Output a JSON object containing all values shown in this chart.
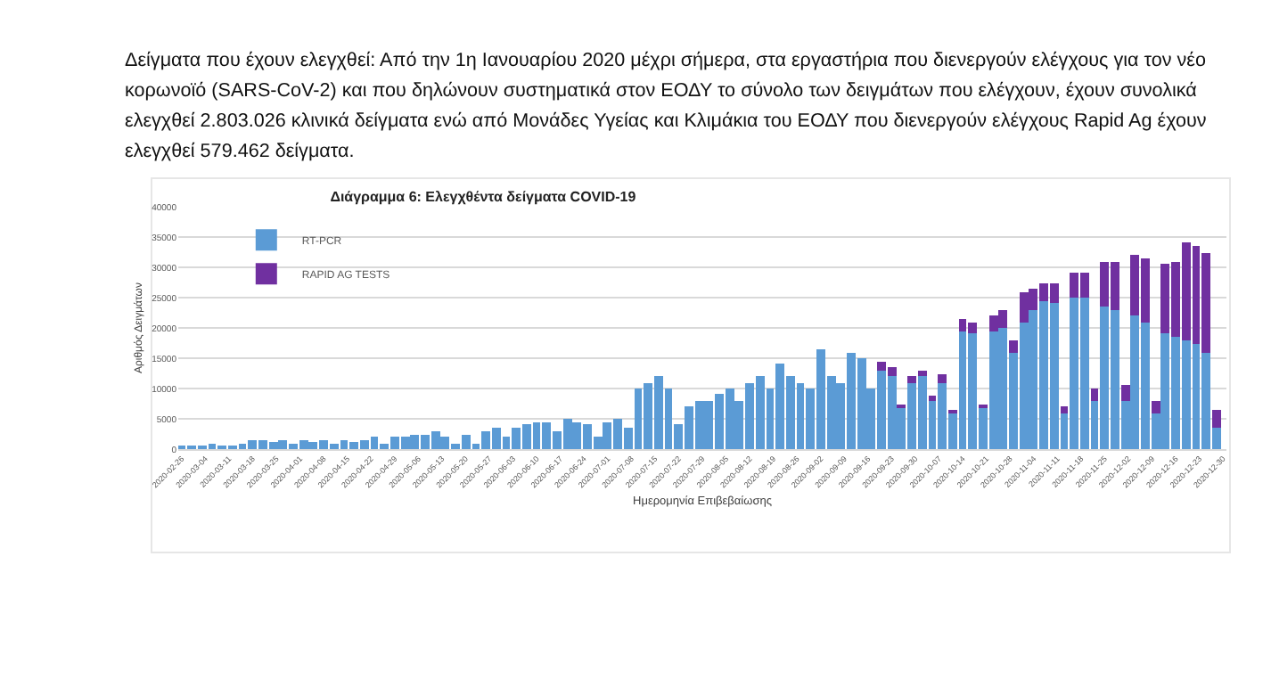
{
  "chart_data": {
    "type": "bar",
    "stacked": true,
    "title": "Διάγραμμα 6: Ελεγχθέντα δείγματα COVID-19",
    "xlabel": "Ημερομηνία Επιβεβαίωσης",
    "ylabel": "Αριθμός Δειγμάτων",
    "annotations": [
      "Δείγματα που έχουν ελεγχθεί: Από την 1η Ιανουαρίου 2020 μέχρι σήμερα, στα εργαστήρια που διενεργούν ελέγχους για τον νέο",
      "κορωνοϊό (SARS-CoV-2) και που δηλώνουν συστηματικά στον ΕΟΔΥ το σύνολο των δειγμάτων που ελέγχουν, έχουν συνολικά",
      "ελεγχθεί 2.803.026 κλινικά δείγματα ενώ από Μονάδες Υγείας και Κλιμάκια του ΕΟΔΥ που διενεργούν ελέγχους Rapid Ag έχουν",
      "ελεγχθεί 579.462 δείγματα."
    ],
    "x": [
      "2020-02-26",
      "2020-02-29",
      "2020-03-03",
      "2020-03-06",
      "2020-03-09",
      "2020-03-12",
      "2020-03-15",
      "2020-03-18",
      "2020-03-21",
      "2020-03-24",
      "2020-03-27",
      "2020-03-30",
      "2020-04-02",
      "2020-04-05",
      "2020-04-08",
      "2020-04-11",
      "2020-04-14",
      "2020-04-17",
      "2020-04-20",
      "2020-04-23",
      "2020-04-26",
      "2020-04-29",
      "2020-05-02",
      "2020-05-05",
      "2020-05-08",
      "2020-05-11",
      "2020-05-14",
      "2020-05-17",
      "2020-05-20",
      "2020-05-23",
      "2020-05-26",
      "2020-05-29",
      "2020-06-01",
      "2020-06-04",
      "2020-06-07",
      "2020-06-10",
      "2020-06-13",
      "2020-06-16",
      "2020-06-19",
      "2020-06-22",
      "2020-06-25",
      "2020-06-28",
      "2020-07-01",
      "2020-07-04",
      "2020-07-07",
      "2020-07-10",
      "2020-07-13",
      "2020-07-16",
      "2020-07-19",
      "2020-07-22",
      "2020-07-25",
      "2020-07-28",
      "2020-07-31",
      "2020-08-03",
      "2020-08-06",
      "2020-08-09",
      "2020-08-12",
      "2020-08-15",
      "2020-08-18",
      "2020-08-21",
      "2020-08-24",
      "2020-08-27",
      "2020-08-30",
      "2020-09-02",
      "2020-09-05",
      "2020-09-08",
      "2020-09-11",
      "2020-09-14",
      "2020-09-17",
      "2020-09-20",
      "2020-09-23",
      "2020-09-26",
      "2020-09-29",
      "2020-10-02",
      "2020-10-05",
      "2020-10-08",
      "2020-10-11",
      "2020-10-14",
      "2020-10-17",
      "2020-10-20",
      "2020-10-23",
      "2020-10-26",
      "2020-10-29",
      "2020-11-01",
      "2020-11-04",
      "2020-11-07",
      "2020-11-10",
      "2020-11-13",
      "2020-11-16",
      "2020-11-19",
      "2020-11-22",
      "2020-11-25",
      "2020-11-28",
      "2020-12-01",
      "2020-12-04",
      "2020-12-07",
      "2020-12-10",
      "2020-12-13",
      "2020-12-16",
      "2020-12-19",
      "2020-12-22",
      "2020-12-25",
      "2020-12-28"
    ],
    "series": [
      {
        "name": "RT-PCR",
        "color": "#5b9bd5",
        "values": [
          300,
          300,
          500,
          800,
          400,
          600,
          1000,
          1500,
          1500,
          1200,
          1500,
          1000,
          1500,
          1200,
          1500,
          1000,
          1500,
          1200,
          1500,
          2000,
          1000,
          2000,
          2200,
          2500,
          2500,
          2800,
          2000,
          1000,
          2500,
          1000,
          3000,
          3500,
          2000,
          3500,
          4000,
          4500,
          4500,
          3000,
          5000,
          4500,
          4000,
          2000,
          4500,
          5000,
          3500,
          10000,
          11000,
          12000,
          10000,
          4000,
          7000,
          8000,
          8000,
          9000,
          10000,
          8000,
          11000,
          12000,
          10000,
          14000,
          12000,
          11000,
          10000,
          16500,
          12000,
          11000,
          16000,
          15000,
          10000,
          13000,
          12000,
          7000,
          11000,
          12000,
          8000,
          11000,
          6000,
          19500,
          19000,
          7000,
          19500,
          20000,
          16000,
          21000,
          23000,
          24500,
          24000,
          6000,
          25000,
          25000,
          8000,
          23500,
          23000,
          8000,
          22000,
          21000,
          6000,
          19000,
          18500,
          18000,
          17500,
          16000,
          3500
        ]
      },
      {
        "name": "RAPID AG TESTS",
        "color": "#7030a0",
        "values": [
          null,
          null,
          null,
          null,
          null,
          null,
          null,
          null,
          null,
          null,
          null,
          null,
          null,
          null,
          null,
          null,
          null,
          null,
          null,
          null,
          null,
          null,
          null,
          null,
          null,
          null,
          null,
          null,
          null,
          null,
          null,
          null,
          null,
          null,
          null,
          null,
          null,
          null,
          null,
          null,
          null,
          null,
          null,
          null,
          null,
          null,
          null,
          null,
          null,
          null,
          null,
          null,
          null,
          null,
          null,
          null,
          null,
          null,
          null,
          null,
          null,
          null,
          null,
          null,
          null,
          null,
          null,
          null,
          null,
          1500,
          1500,
          500,
          1000,
          1000,
          800,
          1500,
          500,
          2000,
          2000,
          500,
          2500,
          3000,
          2000,
          5000,
          3500,
          3000,
          3500,
          1000,
          4000,
          4000,
          2000,
          7500,
          8000,
          2500,
          10000,
          10500,
          2000,
          11500,
          12500,
          16000,
          16000,
          16500,
          3000
        ]
      }
    ],
    "xlim": [
      "2020-02-25",
      "2020-12-31"
    ],
    "xticks": [
      "2020-02-26",
      "2020-03-04",
      "2020-03-11",
      "2020-03-18",
      "2020-03-25",
      "2020-04-01",
      "2020-04-08",
      "2020-04-15",
      "2020-04-22",
      "2020-04-29",
      "2020-05-06",
      "2020-05-13",
      "2020-05-20",
      "2020-05-27",
      "2020-06-03",
      "2020-06-10",
      "2020-06-17",
      "2020-06-24",
      "2020-07-01",
      "2020-07-08",
      "2020-07-15",
      "2020-07-22",
      "2020-07-29",
      "2020-08-05",
      "2020-08-12",
      "2020-08-19",
      "2020-08-26",
      "2020-09-02",
      "2020-09-09",
      "2020-09-16",
      "2020-09-23",
      "2020-09-30",
      "2020-10-07",
      "2020-10-14",
      "2020-10-21",
      "2020-10-28",
      "2020-11-04",
      "2020-11-11",
      "2020-11-18",
      "2020-11-25",
      "2020-12-02",
      "2020-12-09",
      "2020-12-16",
      "2020-12-23",
      "2020-12-30"
    ],
    "ylim": [
      0,
      40000
    ],
    "yticks": [
      0,
      5000,
      10000,
      15000,
      20000,
      25000,
      30000,
      35000,
      40000
    ],
    "grid": "y",
    "legend": "top left"
  }
}
